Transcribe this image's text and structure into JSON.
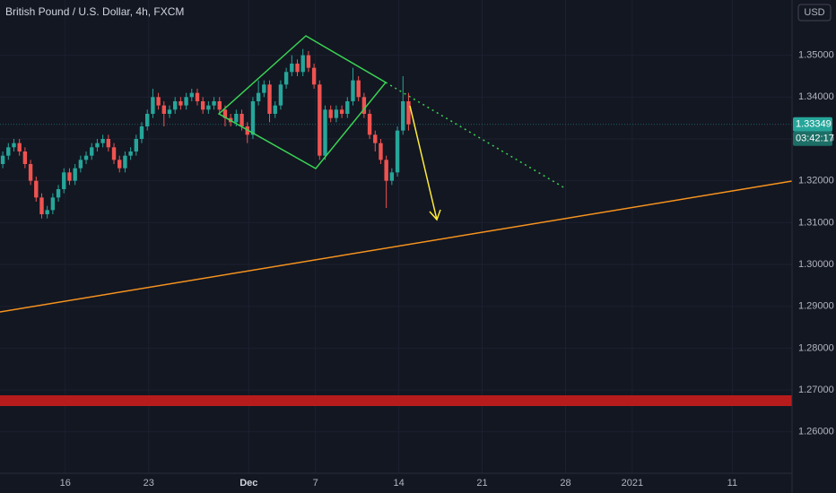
{
  "chart_data": {
    "type": "candlestick",
    "title": "British Pound / U.S. Dollar, 4h, FXCM",
    "currency": "USD",
    "current_price": 1.33349,
    "countdown": "03:42:17",
    "up_color": "#26a69a",
    "down_color": "#ef5350",
    "grid": true,
    "xlim": [
      -1,
      284
    ],
    "xticks": [
      {
        "value": 22.5,
        "label": "16"
      },
      {
        "value": 52.5,
        "label": "23"
      },
      {
        "value": 88.5,
        "label": "Dec"
      },
      {
        "value": 112.5,
        "label": "7"
      },
      {
        "value": 142.5,
        "label": "14"
      },
      {
        "value": 172.5,
        "label": "21"
      },
      {
        "value": 202.5,
        "label": "28"
      },
      {
        "value": 226.5,
        "label": "2021"
      },
      {
        "value": 262.5,
        "label": "11"
      }
    ],
    "ylim": [
      1.2501,
      1.3632
    ],
    "yticks": [
      {
        "value": 1.26,
        "label": "1.26000"
      },
      {
        "value": 1.27,
        "label": "1.27000"
      },
      {
        "value": 1.28,
        "label": "1.28000"
      },
      {
        "value": 1.29,
        "label": "1.29000"
      },
      {
        "value": 1.3,
        "label": "1.30000"
      },
      {
        "value": 1.31,
        "label": "1.31000"
      },
      {
        "value": 1.32,
        "label": "1.32000"
      },
      {
        "value": 1.33,
        "label": "1.33000"
      },
      {
        "value": 1.34,
        "label": "1.34000"
      },
      {
        "value": 1.35,
        "label": "1.35000"
      }
    ],
    "x": [
      0,
      2,
      4,
      6,
      8,
      10,
      12,
      14,
      16,
      18,
      20,
      22,
      24,
      26,
      28,
      30,
      32,
      34,
      36,
      38,
      40,
      42,
      44,
      46,
      48,
      50,
      52,
      54,
      56,
      58,
      60,
      62,
      64,
      66,
      68,
      70,
      72,
      74,
      76,
      78,
      80,
      82,
      84,
      86,
      88,
      90,
      92,
      94,
      96,
      98,
      100,
      102,
      104,
      106,
      108,
      110,
      112,
      114,
      116,
      118,
      120,
      122,
      124,
      126,
      128,
      130,
      132,
      134,
      136,
      138,
      140,
      142,
      144,
      146
    ],
    "open": [
      1.324,
      1.326,
      1.328,
      1.329,
      1.327,
      1.324,
      1.32,
      1.316,
      1.312,
      1.313,
      1.316,
      1.318,
      1.322,
      1.32,
      1.323,
      1.325,
      1.326,
      1.328,
      1.329,
      1.33,
      1.328,
      1.325,
      1.323,
      1.326,
      1.327,
      1.33,
      1.333,
      1.336,
      1.34,
      1.338,
      1.336,
      1.337,
      1.339,
      1.338,
      1.34,
      1.341,
      1.339,
      1.337,
      1.338,
      1.339,
      1.337,
      1.335,
      1.334,
      1.336,
      1.333,
      1.331,
      1.339,
      1.341,
      1.343,
      1.336,
      1.338,
      1.343,
      1.346,
      1.348,
      1.346,
      1.35,
      1.347,
      1.343,
      1.326,
      1.337,
      1.335,
      1.337,
      1.336,
      1.339,
      1.344,
      1.34,
      1.336,
      1.331,
      1.329,
      1.325,
      1.32,
      1.322,
      1.332,
      1.339
    ],
    "high": [
      1.327,
      1.329,
      1.33,
      1.33,
      1.328,
      1.325,
      1.321,
      1.317,
      1.314,
      1.317,
      1.319,
      1.323,
      1.323,
      1.324,
      1.326,
      1.327,
      1.329,
      1.33,
      1.331,
      1.331,
      1.329,
      1.326,
      1.327,
      1.328,
      1.331,
      1.334,
      1.337,
      1.342,
      1.341,
      1.339,
      1.338,
      1.34,
      1.34,
      1.341,
      1.342,
      1.342,
      1.34,
      1.339,
      1.34,
      1.34,
      1.338,
      1.336,
      1.337,
      1.337,
      1.334,
      1.34,
      1.344,
      1.344,
      1.344,
      1.339,
      1.344,
      1.347,
      1.35,
      1.349,
      1.3515,
      1.351,
      1.348,
      1.344,
      1.338,
      1.338,
      1.338,
      1.338,
      1.34,
      1.347,
      1.345,
      1.341,
      1.337,
      1.332,
      1.33,
      1.326,
      1.323,
      1.333,
      1.345,
      1.341
    ],
    "low": [
      1.323,
      1.325,
      1.327,
      1.326,
      1.323,
      1.319,
      1.315,
      1.311,
      1.311,
      1.312,
      1.315,
      1.317,
      1.319,
      1.319,
      1.322,
      1.324,
      1.325,
      1.327,
      1.328,
      1.327,
      1.324,
      1.322,
      1.322,
      1.325,
      1.326,
      1.329,
      1.332,
      1.335,
      1.337,
      1.333,
      1.335,
      1.336,
      1.337,
      1.337,
      1.339,
      1.338,
      1.336,
      1.336,
      1.337,
      1.336,
      1.333,
      1.333,
      1.333,
      1.332,
      1.329,
      1.33,
      1.338,
      1.34,
      1.334,
      1.335,
      1.337,
      1.342,
      1.345,
      1.345,
      1.345,
      1.346,
      1.342,
      1.325,
      1.325,
      1.334,
      1.334,
      1.335,
      1.335,
      1.338,
      1.339,
      1.335,
      1.33,
      1.327,
      1.324,
      1.3135,
      1.319,
      1.321,
      1.331,
      1.332
    ],
    "close": [
      1.326,
      1.328,
      1.329,
      1.327,
      1.324,
      1.32,
      1.316,
      1.312,
      1.313,
      1.316,
      1.318,
      1.322,
      1.32,
      1.323,
      1.325,
      1.326,
      1.328,
      1.329,
      1.33,
      1.328,
      1.325,
      1.323,
      1.326,
      1.327,
      1.33,
      1.333,
      1.336,
      1.34,
      1.338,
      1.336,
      1.337,
      1.339,
      1.338,
      1.34,
      1.341,
      1.339,
      1.337,
      1.338,
      1.339,
      1.337,
      1.335,
      1.334,
      1.336,
      1.333,
      1.331,
      1.339,
      1.341,
      1.343,
      1.336,
      1.338,
      1.343,
      1.346,
      1.348,
      1.346,
      1.35,
      1.347,
      1.343,
      1.326,
      1.337,
      1.335,
      1.337,
      1.336,
      1.339,
      1.344,
      1.34,
      1.336,
      1.331,
      1.329,
      1.325,
      1.32,
      1.322,
      1.332,
      1.339,
      1.33349
    ]
  }
}
